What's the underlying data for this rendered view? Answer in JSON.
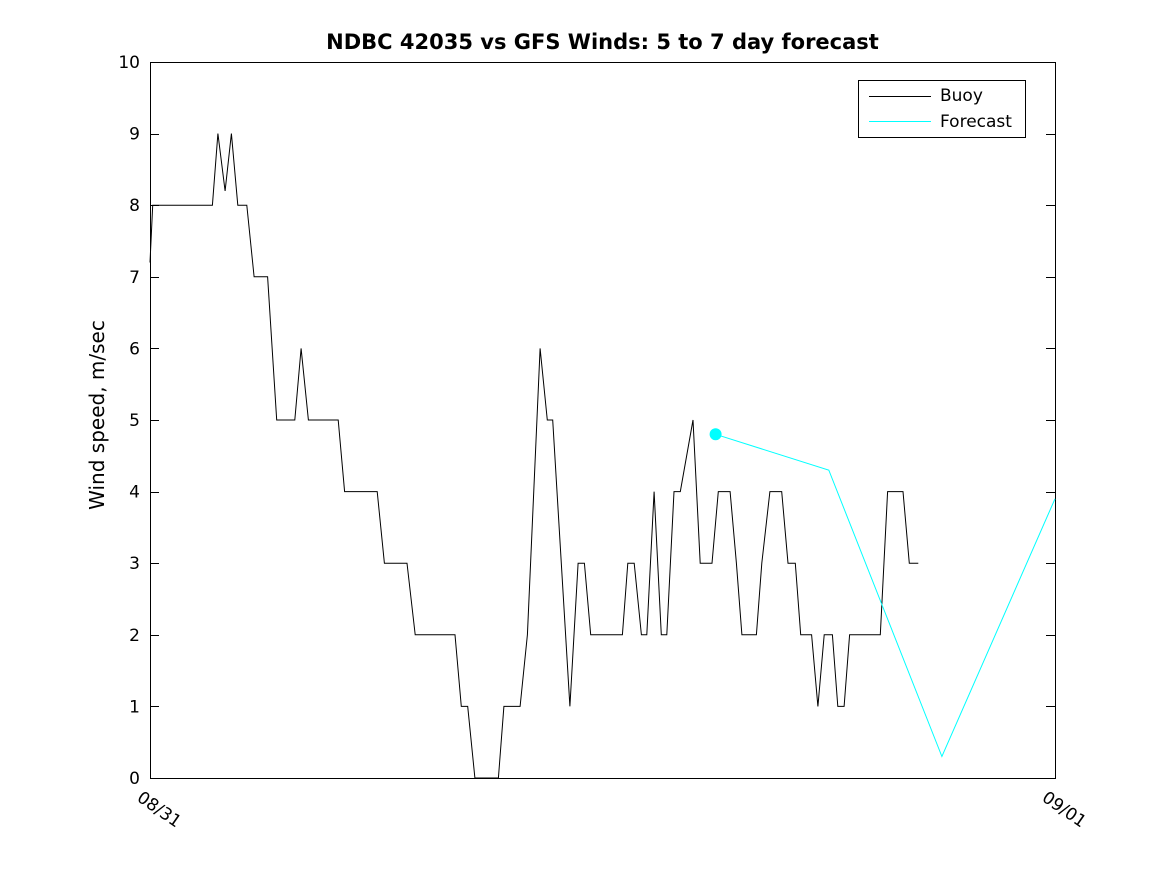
{
  "chart_data": {
    "type": "line",
    "title": "NDBC 42035 vs GFS Winds: 5 to 7 day forecast",
    "xlabel": "",
    "ylabel": "Wind speed, m/sec",
    "ylim": [
      0,
      10
    ],
    "yticks": [
      0,
      1,
      2,
      3,
      4,
      5,
      6,
      7,
      8,
      9,
      10
    ],
    "xticks": [
      {
        "pos": 0,
        "label": "08/31"
      },
      {
        "pos": 1,
        "label": "09/01"
      }
    ],
    "x_unit": "fraction of day starting 08/31 00:00",
    "grid": false,
    "legend_position": "top-right-inside",
    "background": "#ffffff",
    "series": [
      {
        "name": "Buoy",
        "color": "#000000",
        "marker": "none",
        "points": [
          [
            0.0,
            7.2
          ],
          [
            0.003,
            8
          ],
          [
            0.069,
            8
          ],
          [
            0.075,
            9
          ],
          [
            0.083,
            8.2
          ],
          [
            0.09,
            9
          ],
          [
            0.097,
            8
          ],
          [
            0.107,
            8
          ],
          [
            0.115,
            7
          ],
          [
            0.13,
            7
          ],
          [
            0.14,
            5
          ],
          [
            0.16,
            5
          ],
          [
            0.167,
            6
          ],
          [
            0.175,
            5
          ],
          [
            0.208,
            5
          ],
          [
            0.215,
            4
          ],
          [
            0.251,
            4
          ],
          [
            0.259,
            3
          ],
          [
            0.284,
            3
          ],
          [
            0.293,
            2
          ],
          [
            0.337,
            2
          ],
          [
            0.344,
            1
          ],
          [
            0.351,
            1
          ],
          [
            0.359,
            0
          ],
          [
            0.385,
            0
          ],
          [
            0.391,
            1
          ],
          [
            0.409,
            1
          ],
          [
            0.417,
            2
          ],
          [
            0.431,
            6
          ],
          [
            0.439,
            5
          ],
          [
            0.445,
            5
          ],
          [
            0.464,
            1
          ],
          [
            0.473,
            3
          ],
          [
            0.48,
            3
          ],
          [
            0.487,
            2
          ],
          [
            0.522,
            2
          ],
          [
            0.528,
            3
          ],
          [
            0.535,
            3
          ],
          [
            0.543,
            2
          ],
          [
            0.549,
            2
          ],
          [
            0.557,
            4
          ],
          [
            0.565,
            2
          ],
          [
            0.571,
            2
          ],
          [
            0.579,
            4
          ],
          [
            0.586,
            4
          ],
          [
            0.6,
            5
          ],
          [
            0.608,
            3
          ],
          [
            0.621,
            3
          ],
          [
            0.628,
            4
          ],
          [
            0.641,
            4
          ],
          [
            0.648,
            3
          ],
          [
            0.654,
            2
          ],
          [
            0.67,
            2
          ],
          [
            0.676,
            3
          ],
          [
            0.685,
            4
          ],
          [
            0.698,
            4
          ],
          [
            0.705,
            3
          ],
          [
            0.713,
            3
          ],
          [
            0.719,
            2
          ],
          [
            0.731,
            2
          ],
          [
            0.738,
            1
          ],
          [
            0.745,
            2
          ],
          [
            0.754,
            2
          ],
          [
            0.76,
            1
          ],
          [
            0.767,
            1
          ],
          [
            0.773,
            2
          ],
          [
            0.807,
            2
          ],
          [
            0.815,
            4
          ],
          [
            0.832,
            4
          ],
          [
            0.839,
            3
          ],
          [
            0.849,
            3
          ]
        ]
      },
      {
        "name": "Forecast",
        "color": "#00ffff",
        "marker": "circle-first",
        "points": [
          [
            0.625,
            4.8
          ],
          [
            0.75,
            4.3
          ],
          [
            0.875,
            0.3
          ],
          [
            1.0,
            3.9
          ]
        ]
      }
    ]
  }
}
